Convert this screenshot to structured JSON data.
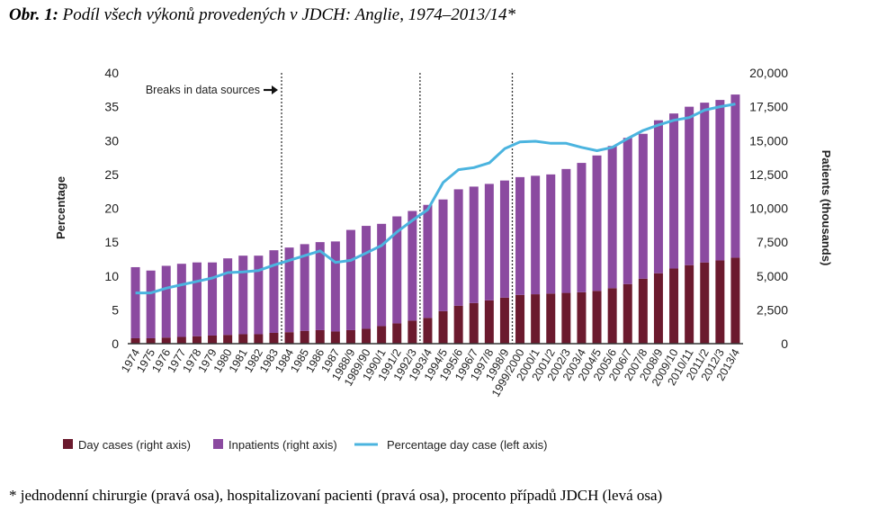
{
  "caption": {
    "label": "Obr. 1:",
    "text": " Podíl všech výkonů provedených v JDCH: Anglie, 1974–2013/14*"
  },
  "footnote": "* jednodenní chirurgie (pravá osa), hospitalizovaní pacienti (pravá osa), procento případů JDCH (levá osa)",
  "colors": {
    "day_cases": "#6b1a2e",
    "inpatients": "#8b4aa0",
    "line": "#4bb4df",
    "axis": "#333333",
    "text": "#222222"
  },
  "chart_data": {
    "type": "bar+line",
    "categories": [
      "1974",
      "1975",
      "1976",
      "1977",
      "1978",
      "1979",
      "1980",
      "1981",
      "1982",
      "1983",
      "1984",
      "1985",
      "1986",
      "1987",
      "1988/9",
      "1989/90",
      "1990/1",
      "1991/2",
      "1992/3",
      "1993/4",
      "1994/5",
      "1995/6",
      "1996/7",
      "1997/8",
      "1998/9",
      "1999/2000",
      "2000/1",
      "2001/2",
      "2002/3",
      "2003/4",
      "2004/5",
      "2005/6",
      "2006/7",
      "2007/8",
      "2008/9",
      "2009/10",
      "2010/11",
      "2011/2",
      "2012/3",
      "2013/4"
    ],
    "series": [
      {
        "name": "Day cases (right axis)",
        "axis": "right",
        "values": [
          400,
          400,
          450,
          500,
          550,
          600,
          650,
          700,
          700,
          800,
          850,
          950,
          1000,
          900,
          1000,
          1100,
          1300,
          1500,
          1700,
          1900,
          2400,
          2800,
          3000,
          3200,
          3400,
          3600,
          3650,
          3700,
          3750,
          3800,
          3900,
          4100,
          4400,
          4800,
          5200,
          5550,
          5800,
          6000,
          6150,
          6350
        ]
      },
      {
        "name": "Inpatients (right axis)",
        "axis": "right",
        "values": [
          5250,
          5000,
          5300,
          5400,
          5450,
          5400,
          5650,
          5800,
          5800,
          6100,
          6250,
          6400,
          6500,
          6650,
          7400,
          7600,
          7550,
          7900,
          8100,
          8350,
          8250,
          8600,
          8600,
          8600,
          8650,
          8700,
          8750,
          8800,
          9150,
          9550,
          10000,
          10500,
          10800,
          10700,
          11300,
          11450,
          11700,
          11800,
          11850,
          12050
        ]
      },
      {
        "name": "Percentage day case (left axis)",
        "axis": "left",
        "type": "line",
        "values": [
          7.5,
          7.5,
          8.2,
          8.7,
          9.2,
          9.7,
          10.5,
          10.6,
          10.8,
          11.6,
          12.3,
          13,
          13.7,
          12,
          12.3,
          13.4,
          14.5,
          16.5,
          18.2,
          19.8,
          23.8,
          25.7,
          26,
          26.7,
          28.8,
          29.8,
          29.9,
          29.6,
          29.6,
          29,
          28.5,
          29,
          30.3,
          31.5,
          32.3,
          33,
          33.4,
          34.5,
          35,
          35.4
        ]
      }
    ],
    "left_axis": {
      "label": "Percentage",
      "min": 0,
      "max": 40,
      "ticks": [
        "0",
        "5",
        "10",
        "15",
        "20",
        "25",
        "30",
        "35",
        "40"
      ]
    },
    "right_axis": {
      "label": "Patients (thousands)",
      "min": 0,
      "max": 20000,
      "ticks": [
        "0",
        "2,500",
        "5,000",
        "7,500",
        "10,000",
        "12,500",
        "15,000",
        "17,500",
        "20,000"
      ]
    },
    "breaks_label": "Breaks in data sources",
    "breaks_after": [
      "1983",
      "1992/3",
      "1998/9"
    ],
    "legend": [
      {
        "label": "Day cases (right axis)",
        "kind": "square",
        "series": 0
      },
      {
        "label": "Inpatients (right axis)",
        "kind": "square",
        "series": 1
      },
      {
        "label": "Percentage day case (left axis)",
        "kind": "line",
        "series": 2
      }
    ]
  }
}
